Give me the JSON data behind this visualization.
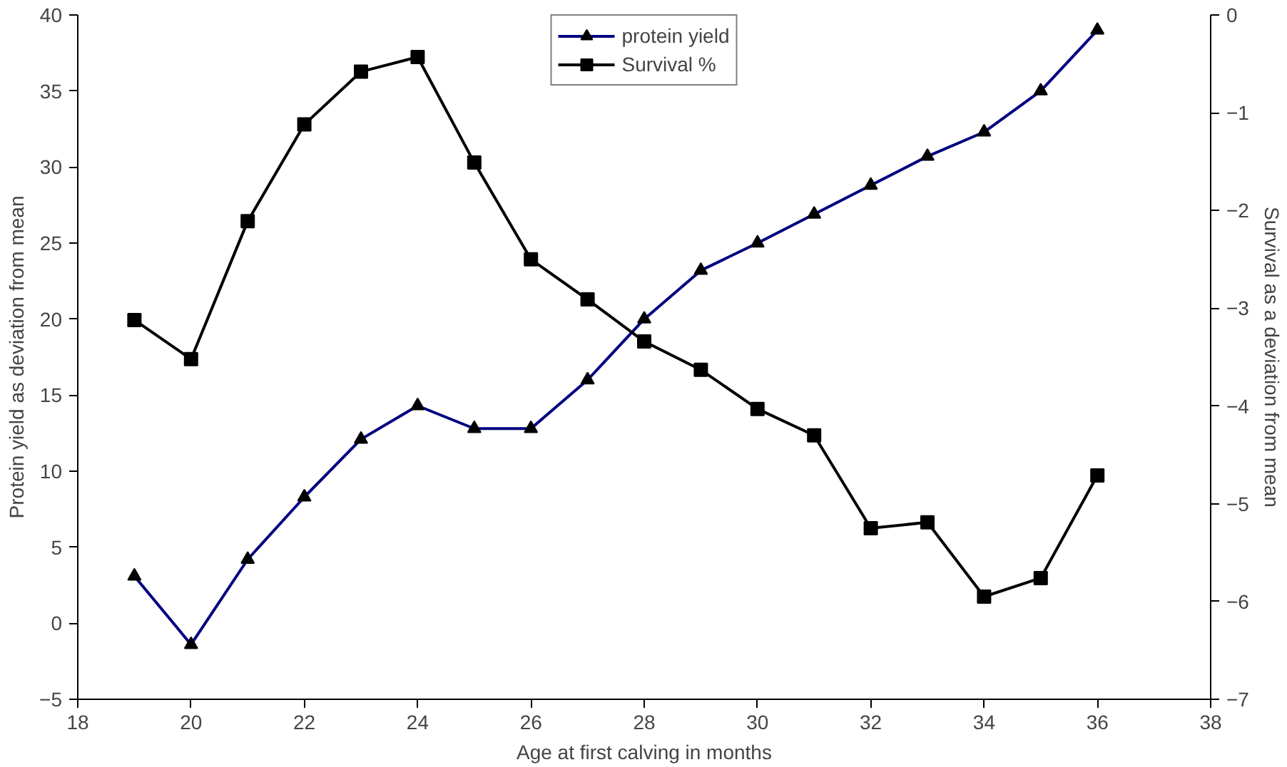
{
  "chart_data": {
    "type": "line",
    "xlabel": "Age at first calving in months",
    "ylabel": "Protein yield as deviation from mean",
    "y2label": "Survival as a deviation from mean",
    "x": [
      19,
      20,
      21,
      22,
      23,
      24,
      25,
      26,
      27,
      28,
      29,
      30,
      31,
      32,
      33,
      34,
      35,
      36
    ],
    "series": [
      {
        "name": "protein yield",
        "color": "#000080",
        "marker": "triangle",
        "values": [
          3.1,
          -1.4,
          4.2,
          8.3,
          12.1,
          14.3,
          12.8,
          12.8,
          16.0,
          20.0,
          23.2,
          25.0,
          26.9,
          28.8,
          30.7,
          32.3,
          35.0,
          39.0
        ]
      },
      {
        "name": "Survival %",
        "color": "#000000",
        "marker": "square",
        "axis": "y2",
        "values": [
          -3.12,
          -3.52,
          -2.11,
          -1.12,
          -0.58,
          -0.43,
          -1.51,
          -2.5,
          -2.91,
          -3.34,
          -3.63,
          -4.03,
          -4.3,
          -5.25,
          -5.19,
          -5.95,
          -5.76,
          -4.71
        ]
      }
    ],
    "xlim": [
      18,
      38
    ],
    "xticks": [
      18,
      20,
      22,
      24,
      26,
      28,
      30,
      32,
      34,
      36,
      38
    ],
    "ylim": [
      -5,
      40
    ],
    "yticks": [
      -5,
      0,
      5,
      10,
      15,
      20,
      25,
      30,
      35,
      40
    ],
    "y2lim": [
      -7,
      0
    ],
    "y2ticks": [
      -7,
      -6,
      -5,
      -4,
      -3,
      -2,
      -1,
      0
    ],
    "grid": false,
    "legend": "top",
    "line_style": "solid"
  }
}
